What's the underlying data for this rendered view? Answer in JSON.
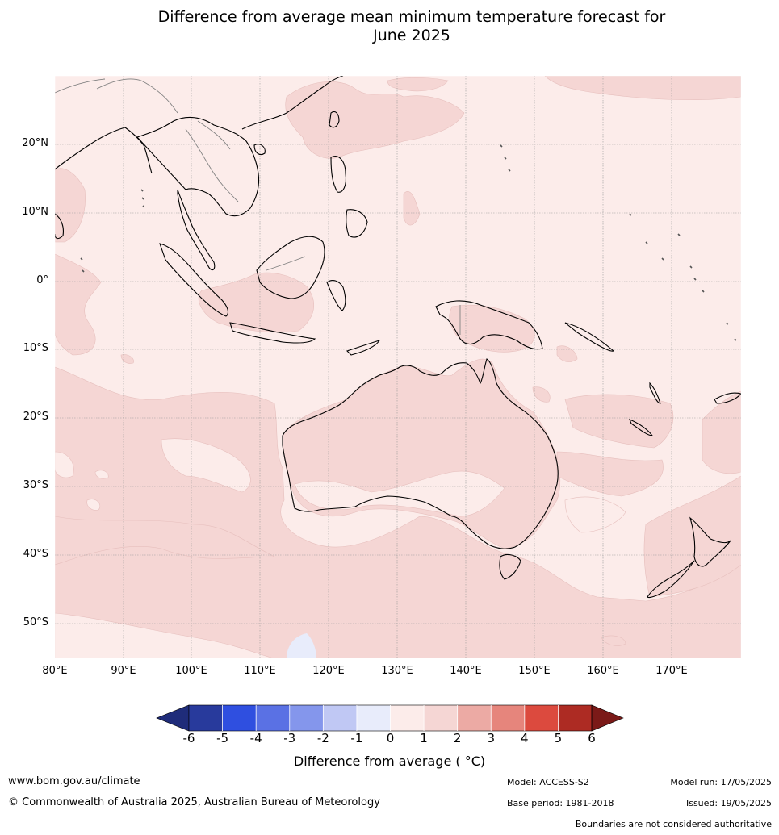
{
  "title": {
    "line1": "Difference from average mean minimum temperature forecast for",
    "line2": "June 2025"
  },
  "map": {
    "region": "Australia and the Indo-Pacific",
    "latitude_labels": [
      "20°N",
      "10°N",
      "0°",
      "10°S",
      "20°S",
      "30°S",
      "40°S",
      "50°S"
    ],
    "longitude_labels": [
      "80°E",
      "90°E",
      "100°E",
      "110°E",
      "120°E",
      "130°E",
      "140°E",
      "150°E",
      "160°E",
      "170°E"
    ],
    "colors": {
      "c0_1": "#fcecea",
      "c1_2": "#f5d6d4",
      "cm1_0": "#e8ecfb",
      "ocean_bg": "#fcecea",
      "coast": "#000000",
      "borders": "#808080",
      "grid": "#9a9a9a"
    }
  },
  "colorbar": {
    "label": "Difference from average ( °C)",
    "ticks": [
      "-6",
      "-5",
      "-4",
      "-3",
      "-2",
      "-1",
      "0",
      "1",
      "2",
      "3",
      "4",
      "5",
      "6"
    ],
    "colors": [
      "#283a9c",
      "#2f4fe0",
      "#5a71e4",
      "#8496ec",
      "#c0c8f4",
      "#e8ecfb",
      "#fcecea",
      "#f5d6d4",
      "#ecaaa4",
      "#e6857c",
      "#dc4a3e",
      "#ad2b23"
    ],
    "under_color": "#1f2c7a",
    "over_color": "#7b1a18"
  },
  "footer": {
    "website": "www.bom.gov.au/climate",
    "copyright": "© Commonwealth of Australia 2025, Australian Bureau of Meteorology",
    "model": "Model: ACCESS-S2",
    "base_period": "Base period: 1981-2018",
    "model_run": "Model run: 17/05/2025",
    "issued": "Issued: 19/05/2025",
    "disclaimer": "Boundaries are not considered authoritative"
  }
}
